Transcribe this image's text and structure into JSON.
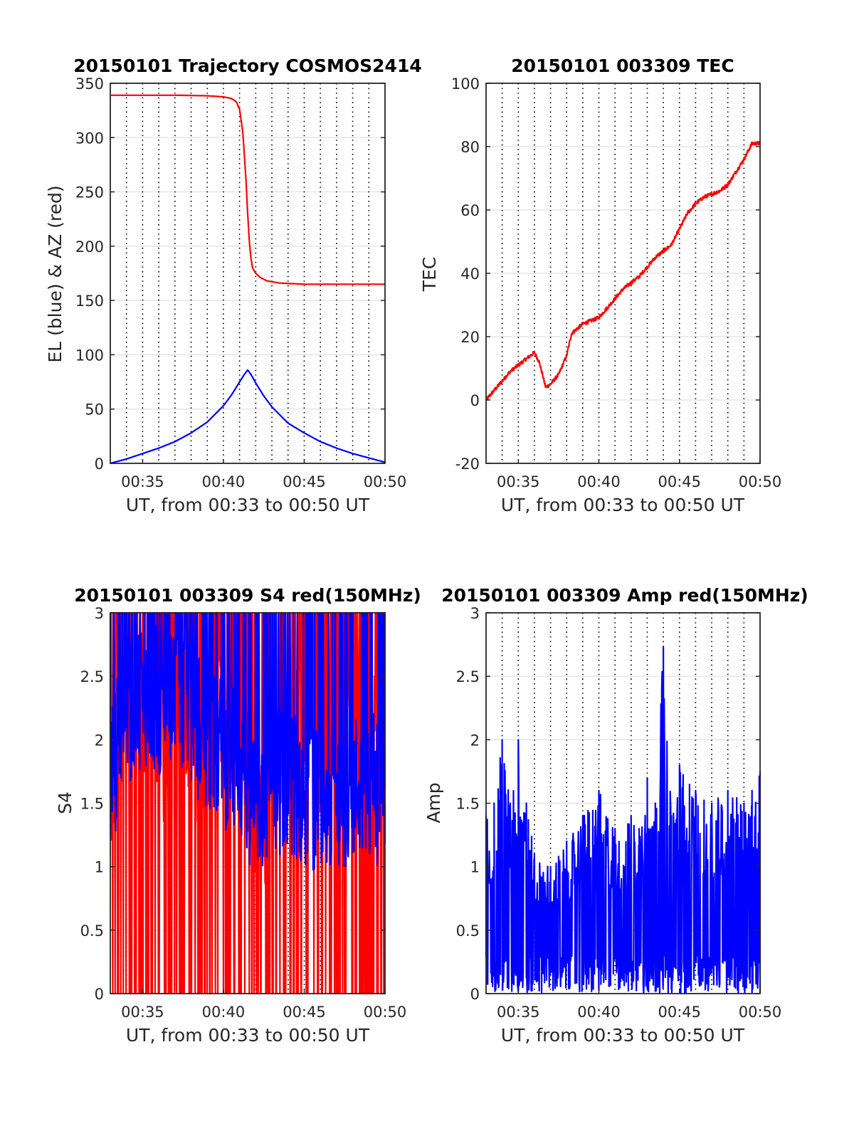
{
  "chart_data": [
    {
      "type": "line",
      "title": "20150101 Trajectory COSMOS2414",
      "xlabel": "UT, from 00:33 to 00:50 UT",
      "ylabel": "EL (blue) & AZ (red)",
      "xlim": [
        33,
        50
      ],
      "ylim": [
        0,
        350
      ],
      "x_ticks": [
        35,
        40,
        45,
        50
      ],
      "x_tick_labels": [
        "00:35",
        "00:40",
        "00:45",
        "00:50"
      ],
      "y_ticks": [
        0,
        50,
        100,
        150,
        200,
        250,
        300,
        350
      ],
      "y_tick_labels": [
        "0",
        "50",
        "100",
        "150",
        "200",
        "250",
        "300",
        "350"
      ],
      "grid": true,
      "series": [
        {
          "color": "#ff0000",
          "x": [
            33,
            35,
            37,
            39,
            40,
            40.5,
            40.8,
            41.0,
            41.2,
            41.4,
            41.5,
            41.6,
            41.7,
            41.8,
            42.0,
            42.3,
            42.7,
            43.5,
            45,
            47,
            50
          ],
          "values": [
            339,
            339,
            339,
            338.5,
            337.5,
            336,
            333,
            326,
            305,
            260,
            230,
            205,
            190,
            180,
            175,
            171,
            168,
            166,
            165,
            165,
            165
          ]
        },
        {
          "color": "#0000ff",
          "x": [
            33,
            34,
            35,
            36,
            37,
            38,
            39,
            40,
            40.5,
            41,
            41.3,
            41.5,
            41.7,
            42,
            42.5,
            43,
            44,
            45,
            46,
            47,
            48,
            49,
            50
          ],
          "values": [
            0,
            4,
            9,
            14,
            20,
            28,
            38,
            53,
            63,
            75,
            82,
            86,
            82,
            74,
            62,
            52,
            37,
            28,
            20,
            14,
            9,
            5,
            1
          ]
        }
      ]
    },
    {
      "type": "line",
      "title": "20150101 003309 TEC",
      "xlabel": "UT, from 00:33 to 00:50 UT",
      "ylabel": "TEC",
      "xlim": [
        33,
        50
      ],
      "ylim": [
        -20,
        100
      ],
      "x_ticks": [
        35,
        40,
        45,
        50
      ],
      "x_tick_labels": [
        "00:35",
        "00:40",
        "00:45",
        "00:50"
      ],
      "y_ticks": [
        -20,
        0,
        20,
        40,
        60,
        80,
        100
      ],
      "y_tick_labels": [
        "-20",
        "0",
        "20",
        "40",
        "60",
        "80",
        "100"
      ],
      "grid": true,
      "series": [
        {
          "color": "#ff0000",
          "x": [
            33,
            33.5,
            34,
            34.5,
            35,
            35.5,
            36,
            36.3,
            36.7,
            37,
            37.5,
            38,
            38.3,
            39,
            39.5,
            40,
            40.5,
            41,
            41.5,
            42,
            42.5,
            43,
            43.5,
            44,
            44.5,
            45,
            45.5,
            46,
            46.5,
            47,
            47.5,
            48,
            48.5,
            49,
            49.5,
            50
          ],
          "values": [
            0,
            3,
            6,
            9,
            11,
            13,
            15,
            12,
            4,
            5,
            8,
            14,
            21,
            24,
            25,
            26,
            29,
            32,
            35,
            37,
            39,
            42,
            45,
            47,
            49,
            54,
            59,
            62,
            64,
            65,
            66,
            68,
            72,
            76,
            81,
            81
          ]
        }
      ]
    },
    {
      "type": "line",
      "title": "20150101 003309 S4 red(150MHz)",
      "xlabel": "UT, from 00:33 to 00:50 UT",
      "ylabel": "S4",
      "xlim": [
        33,
        50
      ],
      "ylim": [
        0,
        3
      ],
      "x_ticks": [
        35,
        40,
        45,
        50
      ],
      "x_tick_labels": [
        "00:35",
        "00:40",
        "00:45",
        "00:50"
      ],
      "y_ticks": [
        0,
        0.5,
        1,
        1.5,
        2,
        2.5,
        3
      ],
      "y_tick_labels": [
        "0",
        "0.5",
        "1",
        "1.5",
        "2",
        "2.5",
        "3"
      ],
      "grid": true,
      "series": [
        {
          "color": "#ff0000",
          "x": [
            33,
            34,
            35,
            36,
            37,
            38,
            39,
            40,
            41,
            42,
            43,
            44,
            45,
            46,
            47,
            48,
            49,
            50
          ],
          "values": [
            1.6,
            2.5,
            2.4,
            1.8,
            2.2,
            1.9,
            2.0,
            2.3,
            2.1,
            1.5,
            1.4,
            2.2,
            2.0,
            1.9,
            2.3,
            2.2,
            2.1,
            1.6
          ]
        },
        {
          "color": "#0000ff",
          "x": [
            33,
            34,
            35,
            36,
            37,
            38,
            39,
            40,
            41,
            42,
            43,
            44,
            45,
            46,
            47,
            48,
            49,
            50
          ],
          "values": [
            1.7,
            2.2,
            2.4,
            2.3,
            2.5,
            2.2,
            2.0,
            1.9,
            1.8,
            1.5,
            1.6,
            1.7,
            1.6,
            1.5,
            1.6,
            1.6,
            1.7,
            1.5
          ]
        }
      ]
    },
    {
      "type": "line",
      "title": "20150101 003309 Amp red(150MHz)",
      "xlabel": "UT, from 00:33 to 00:50 UT",
      "ylabel": "Amp",
      "xlim": [
        33,
        50
      ],
      "ylim": [
        0,
        3
      ],
      "x_ticks": [
        35,
        40,
        45,
        50
      ],
      "x_tick_labels": [
        "00:35",
        "00:40",
        "00:45",
        "00:50"
      ],
      "y_ticks": [
        0,
        0.5,
        1,
        1.5,
        2,
        2.5,
        3
      ],
      "y_tick_labels": [
        "0",
        "0.5",
        "1",
        "1.5",
        "2",
        "2.5",
        "3"
      ],
      "grid": true,
      "series": [
        {
          "color": "#0000ff",
          "x": [
            33,
            33.5,
            34,
            34.5,
            35,
            35.5,
            36,
            37,
            38,
            39,
            40,
            41,
            42,
            42.5,
            43,
            43.5,
            44,
            44.5,
            45,
            46,
            47,
            48,
            49,
            49.5,
            50
          ],
          "values": [
            1.4,
            1.5,
            2.0,
            1.5,
            2.0,
            1.5,
            1.1,
            1.0,
            1.2,
            1.4,
            1.6,
            1.3,
            1.4,
            1.3,
            1.7,
            1.5,
            2.73,
            1.4,
            1.8,
            1.6,
            1.5,
            1.6,
            1.5,
            1.6,
            1.75
          ]
        }
      ]
    }
  ]
}
